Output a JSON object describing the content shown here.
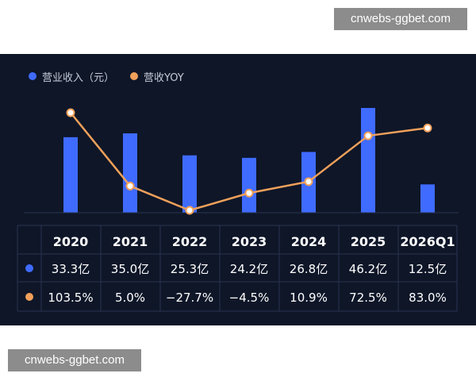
{
  "watermarks": {
    "top": "cnwebs-ggbet.com",
    "bottom": "cnwebs-ggbet.com"
  },
  "colors": {
    "background": "#0e1628",
    "revenue_bar": "#3f6bff",
    "yoy_line": "#f0a05a",
    "grid": "#2a3450",
    "text": "#ffffff"
  },
  "chart_data": {
    "type": "bar",
    "legend_placement": "top-left",
    "categories": [
      "2020",
      "2021",
      "2022",
      "2023",
      "2024",
      "2025",
      "2026Q1"
    ],
    "series": [
      {
        "name": "营业收入（元）",
        "type": "bar",
        "values": [
          33.3,
          35.0,
          25.3,
          24.2,
          26.8,
          46.2,
          12.5
        ],
        "labels": [
          "33.3亿",
          "35.0亿",
          "25.3亿",
          "24.2亿",
          "26.8亿",
          "46.2亿",
          "12.5亿"
        ]
      },
      {
        "name": "营收YOY",
        "type": "line",
        "values": [
          103.5,
          5.0,
          -27.7,
          -4.5,
          10.9,
          72.5,
          83.0
        ],
        "labels": [
          "103.5%",
          "5.0%",
          "−27.7%",
          "−4.5%",
          "10.9%",
          "72.5%",
          "83.0%"
        ]
      }
    ],
    "title": "",
    "xlabel": "",
    "ylabel": "",
    "grid": false
  }
}
